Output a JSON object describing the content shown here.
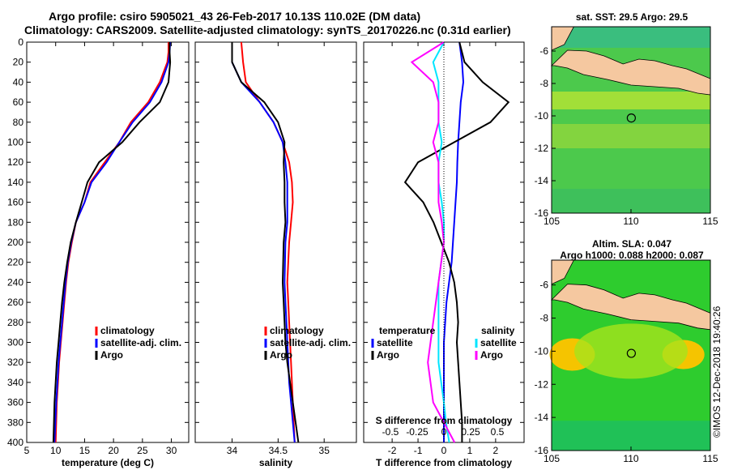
{
  "title": {
    "line1": "Argo profile: csiro 5905021_43 26-Feb-2017 10.13S 110.02E (DM data)",
    "line2": "Climatology: CARS2009. Satellite-adjusted climatology: synTS_20170226.nc (0.31d earlier)"
  },
  "credit": "©IMOS 12-Dec-2018 19:40:26",
  "colors": {
    "climatology": "#ff0000",
    "satellite": "#0000ff",
    "argo": "#000000",
    "sat_salinity": "#00e5ff",
    "argo_salinity": "#ff00ff",
    "land": "#f5c8a0",
    "sst_ocean": "#39c639",
    "sla_ocean": "#2ecc2e"
  },
  "chart_data": [
    {
      "id": "temperature",
      "type": "line",
      "xlabel": "temperature (deg C)",
      "ylabel": "depth",
      "xlim": [
        5,
        33
      ],
      "ylim": [
        400,
        0
      ],
      "xticks": [
        5,
        10,
        15,
        20,
        25,
        30
      ],
      "yticks": [
        0,
        20,
        40,
        60,
        80,
        100,
        120,
        140,
        160,
        180,
        200,
        220,
        240,
        260,
        280,
        300,
        320,
        340,
        360,
        380,
        400
      ],
      "legend": [
        {
          "key": "climatology",
          "label": "climatology"
        },
        {
          "key": "satellite",
          "label": "satellite-adj. clim."
        },
        {
          "key": "argo",
          "label": "Argo"
        }
      ],
      "series": [
        {
          "name": "climatology",
          "color": "#ff0000",
          "x": [
            29.5,
            29.5,
            29.3,
            28,
            26,
            23,
            21,
            18.5,
            16,
            15,
            13.5,
            12.8,
            12.2,
            11.8,
            11.5,
            11.2,
            10.9,
            10.6,
            10.4,
            10.2,
            10
          ],
          "y": [
            0,
            10,
            20,
            40,
            60,
            80,
            100,
            120,
            140,
            160,
            180,
            200,
            220,
            240,
            260,
            280,
            300,
            320,
            340,
            360,
            400
          ]
        },
        {
          "name": "satellite-adj. clim.",
          "color": "#0000ff",
          "x": [
            29.8,
            29.7,
            29.5,
            28.3,
            26.3,
            23.3,
            21,
            18.8,
            16.2,
            15,
            13.5,
            12.7,
            12.1,
            11.7,
            11.4,
            11.1,
            10.8,
            10.5,
            10.3,
            10.1,
            9.8
          ],
          "y": [
            0,
            10,
            20,
            40,
            60,
            80,
            100,
            120,
            140,
            160,
            180,
            200,
            220,
            240,
            260,
            280,
            300,
            320,
            340,
            360,
            400
          ]
        },
        {
          "name": "Argo",
          "color": "#000000",
          "x": [
            29.7,
            29.7,
            29.8,
            29.5,
            28,
            24.5,
            21.5,
            17.5,
            15.5,
            14.5,
            13.5,
            12.6,
            12,
            11.5,
            11.1,
            10.8,
            10.5,
            10.2,
            10,
            9.8,
            9.6
          ],
          "y": [
            0,
            10,
            20,
            40,
            60,
            80,
            100,
            120,
            140,
            160,
            180,
            200,
            220,
            240,
            260,
            280,
            300,
            320,
            340,
            360,
            400
          ]
        }
      ]
    },
    {
      "id": "salinity",
      "type": "line",
      "xlabel": "salinity",
      "ylabel": "depth",
      "xlim": [
        33.6,
        35.35
      ],
      "ylim": [
        400,
        0
      ],
      "xticks": [
        34,
        34.5,
        35
      ],
      "legend": [
        {
          "key": "climatology",
          "label": "climatology"
        },
        {
          "key": "satellite",
          "label": "satellite-adj. clim."
        },
        {
          "key": "argo",
          "label": "Argo"
        }
      ],
      "series": [
        {
          "name": "climatology",
          "color": "#ff0000",
          "x": [
            34.1,
            34.12,
            34.15,
            34.3,
            34.45,
            34.55,
            34.62,
            34.65,
            34.66,
            34.64,
            34.62,
            34.6,
            34.61,
            34.62,
            34.63,
            34.64,
            34.65,
            34.66,
            34.68
          ],
          "y": [
            0,
            20,
            40,
            60,
            80,
            100,
            120,
            140,
            160,
            180,
            200,
            240,
            260,
            280,
            300,
            320,
            340,
            360,
            400
          ]
        },
        {
          "name": "satellite-adj. clim.",
          "color": "#0000ff",
          "x": [
            34.0,
            34.0,
            34.1,
            34.3,
            34.45,
            34.55,
            34.58,
            34.6,
            34.6,
            34.6,
            34.58,
            34.57,
            34.58,
            34.59,
            34.6,
            34.61,
            34.62,
            34.64,
            34.68
          ],
          "y": [
            0,
            20,
            40,
            60,
            80,
            100,
            120,
            140,
            160,
            180,
            200,
            240,
            260,
            280,
            300,
            320,
            340,
            360,
            400
          ]
        },
        {
          "name": "Argo",
          "color": "#000000",
          "x": [
            34.0,
            34.0,
            34.1,
            34.35,
            34.5,
            34.57,
            34.56,
            34.57,
            34.57,
            34.58,
            34.56,
            34.55,
            34.56,
            34.57,
            34.58,
            34.6,
            34.63,
            34.66,
            34.72
          ],
          "y": [
            0,
            20,
            40,
            60,
            80,
            100,
            120,
            140,
            160,
            180,
            200,
            240,
            260,
            280,
            300,
            320,
            340,
            360,
            400
          ]
        }
      ]
    },
    {
      "id": "difference",
      "type": "line",
      "xlabel": "T difference from climatology",
      "xlabel_top": "S difference from climatology",
      "ylabel": "depth",
      "xlim": [
        -3.1,
        3.1
      ],
      "ylim": [
        400,
        0
      ],
      "xticks": [
        -2,
        -1,
        0,
        1,
        2
      ],
      "xticks_salinity": [
        {
          "value": -0.5,
          "label": "-0.5"
        },
        {
          "value": -0.25,
          "label": "-0.25"
        },
        {
          "value": 0,
          "label": "0"
        },
        {
          "value": 0.25,
          "label": "0.25"
        },
        {
          "value": 0.5,
          "label": "0.5"
        }
      ],
      "legend_temperature_title": "temperature",
      "legend_salinity_title": "salinity",
      "legend_temperature": [
        {
          "key": "satellite",
          "label": "satellite"
        },
        {
          "key": "argo",
          "label": "Argo"
        }
      ],
      "legend_salinity": [
        {
          "key": "sat_salinity",
          "label": "satellite"
        },
        {
          "key": "argo_salinity",
          "label": "Argo"
        }
      ],
      "series": [
        {
          "name": "T satellite",
          "color": "#0000ff",
          "x": [
            0.6,
            0.7,
            0.75,
            0.65,
            0.6,
            0.55,
            0.52,
            0.5,
            0.45,
            0.4,
            0.35,
            0.3,
            0.2,
            0.1,
            0.05,
            0,
            0,
            0,
            0,
            0
          ],
          "y": [
            0,
            20,
            40,
            60,
            80,
            100,
            120,
            140,
            160,
            180,
            200,
            220,
            240,
            260,
            280,
            300,
            320,
            340,
            380,
            400
          ]
        },
        {
          "name": "T Argo",
          "color": "#000000",
          "x": [
            0.6,
            0.8,
            1.5,
            2.5,
            1.8,
            0.4,
            -1,
            -1.5,
            -0.8,
            -0.4,
            -0.1,
            0.2,
            0.4,
            0.5,
            0.55,
            0.5,
            0.55,
            0.6,
            0.7,
            0.7
          ],
          "y": [
            0,
            20,
            40,
            60,
            80,
            100,
            120,
            140,
            160,
            180,
            200,
            220,
            240,
            260,
            280,
            300,
            320,
            340,
            380,
            400
          ]
        },
        {
          "name": "S satellite",
          "color": "#00e5ff",
          "x": [
            0.0,
            -0.1,
            -0.05,
            -0.05,
            -0.05,
            -0.02,
            -0.05,
            -0.05,
            -0.02,
            0,
            0,
            -0.05,
            -0.05,
            -0.05,
            0,
            0.02,
            0.05
          ],
          "y": [
            0,
            20,
            40,
            60,
            80,
            100,
            120,
            140,
            160,
            180,
            200,
            240,
            280,
            320,
            360,
            380,
            400
          ]
        },
        {
          "name": "S Argo",
          "color": "#ff00ff",
          "x": [
            0,
            -0.3,
            -0.1,
            -0.05,
            -0.05,
            -0.1,
            -0.05,
            -0.05,
            -0.05,
            -0.02,
            0,
            -0.05,
            -0.1,
            -0.15,
            -0.1,
            0,
            0.1
          ],
          "y": [
            0,
            20,
            40,
            60,
            80,
            100,
            120,
            140,
            160,
            180,
            200,
            240,
            280,
            320,
            360,
            380,
            400
          ]
        }
      ]
    },
    {
      "id": "sst-map",
      "type": "heatmap",
      "title": "sat. SST: 29.5 Argo: 29.5",
      "xlim": [
        105,
        115
      ],
      "ylim": [
        -16,
        -4.5
      ],
      "xticks": [
        105,
        110,
        115
      ],
      "yticks": [
        -6,
        -8,
        -10,
        -12,
        -14,
        -16
      ],
      "marker": {
        "lon": 110.02,
        "lat": -10.13
      }
    },
    {
      "id": "sla-map",
      "type": "heatmap",
      "title": "Altim. SLA: 0.047",
      "subtitle": "Argo h1000: 0.088 h2000: 0.087",
      "xlim": [
        105,
        115
      ],
      "ylim": [
        -16,
        -4.5
      ],
      "xticks": [
        105,
        110,
        115
      ],
      "yticks": [
        -6,
        -8,
        -10,
        -12,
        -14,
        -16
      ],
      "marker": {
        "lon": 110.02,
        "lat": -10.13
      }
    }
  ]
}
